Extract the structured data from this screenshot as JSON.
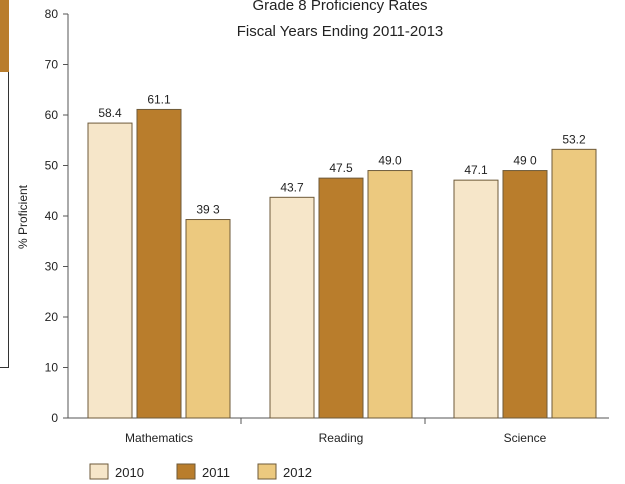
{
  "chart_data": {
    "type": "bar",
    "title": [
      "Grade 8 Proficiency Rates",
      "Fiscal Years Ending 2011-2013"
    ],
    "xlabel": "",
    "ylabel": "% Proficient",
    "ylim": [
      0,
      80
    ],
    "yticks": [
      0,
      10,
      20,
      30,
      40,
      50,
      60,
      70,
      80
    ],
    "grid": false,
    "legend_position": "bottom-left",
    "categories": [
      "Mathematics",
      "Reading",
      "Science"
    ],
    "series": [
      {
        "name": "2010",
        "color": "#f6e6c9",
        "values": [
          58.4,
          43.7,
          47.1
        ],
        "value_labels": [
          "58.4",
          "43.7",
          "47.1"
        ]
      },
      {
        "name": "2011",
        "color": "#b97d2c",
        "values": [
          61.1,
          47.5,
          49.0
        ],
        "value_labels": [
          "61.1",
          "47.5",
          "49 0"
        ]
      },
      {
        "name": "2012",
        "color": "#ecc97f",
        "values": [
          39.3,
          49.0,
          53.2
        ],
        "value_labels": [
          "39 3",
          "49.0",
          "53.2"
        ]
      }
    ]
  }
}
